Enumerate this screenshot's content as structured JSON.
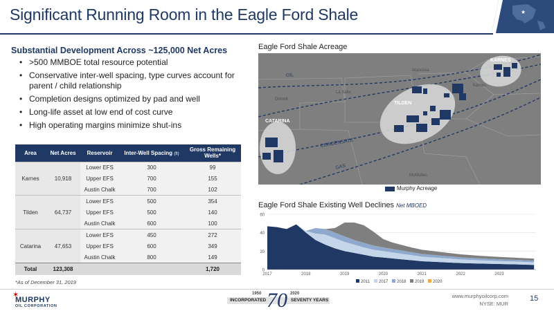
{
  "slide": {
    "title": "Significant Running Room in the Eagle Ford Shale",
    "page_number": "15"
  },
  "left": {
    "subhead": "Substantial Development Across ~125,000 Net Acres",
    "bullets": [
      ">500 MMBOE total resource potential",
      "Conservative inter-well spacing, type curves account for parent / child relationship",
      "Completion designs optimized by pad and well",
      "Long-life asset at low end of cost curve",
      "High operating margins minimize shut-ins"
    ]
  },
  "table": {
    "headers": {
      "area": "Area",
      "net_acres": "Net Acres",
      "reservoir": "Reservoir",
      "spacing": "Inter-Well Spacing",
      "spacing_unit": "(ft)",
      "wells": "Gross Remaining Wells*"
    },
    "groups": [
      {
        "area": "Karnes",
        "net_acres": "10,918",
        "rows": [
          {
            "reservoir": "Lower EFS",
            "spacing": "300",
            "wells": "99"
          },
          {
            "reservoir": "Upper EFS",
            "spacing": "700",
            "wells": "155"
          },
          {
            "reservoir": "Austin Chalk",
            "spacing": "700",
            "wells": "102"
          }
        ]
      },
      {
        "area": "Tilden",
        "net_acres": "64,737",
        "rows": [
          {
            "reservoir": "Lower EFS",
            "spacing": "500",
            "wells": "354"
          },
          {
            "reservoir": "Upper EFS",
            "spacing": "500",
            "wells": "140"
          },
          {
            "reservoir": "Austin Chalk",
            "spacing": "600",
            "wells": "100"
          }
        ]
      },
      {
        "area": "Catarina",
        "net_acres": "47,653",
        "rows": [
          {
            "reservoir": "Lower EFS",
            "spacing": "450",
            "wells": "272"
          },
          {
            "reservoir": "Upper EFS",
            "spacing": "600",
            "wells": "349"
          },
          {
            "reservoir": "Austin Chalk",
            "spacing": "800",
            "wells": "149"
          }
        ]
      }
    ],
    "total": {
      "label": "Total",
      "net_acres": "123,308",
      "wells": "1,720"
    },
    "footnote": "*As of December 31, 2019"
  },
  "map": {
    "title": "Eagle Ford Shale Acreage",
    "areas": {
      "karnes": "KARNES",
      "tilden": "TILDEN",
      "catarina": "CATARINA"
    },
    "windows": {
      "oil": "OIL",
      "condensate": "CONDENSATE",
      "gas": "GAS"
    },
    "counties": {
      "atascosa": "Atascosa",
      "karnes": "Karnes",
      "dimmit": "Dimmit",
      "la_salle": "La Salle",
      "mcmullen": "McMullen"
    },
    "legend": "Murphy Acreage",
    "colors": {
      "background": "#7f7f7f",
      "acreage": "#1f3864",
      "oval": "#d9d9d9"
    }
  },
  "chart": {
    "title": "Eagle Ford Shale Existing Well Declines",
    "subtitle": "Net MBOED"
  },
  "chart_data": {
    "type": "area",
    "title": "Eagle Ford Shale Existing Well Declines",
    "ylabel": "Net MBOED",
    "ylim": [
      0,
      60
    ],
    "yticks": [
      "0",
      "20",
      "40",
      "60"
    ],
    "xticks": [
      "2017",
      "2018",
      "2019",
      "2020",
      "2021",
      "2022",
      "2023"
    ],
    "x": [
      2017.0,
      2017.25,
      2017.5,
      2017.75,
      2018.0,
      2018.25,
      2018.5,
      2018.75,
      2019.0,
      2019.25,
      2019.5,
      2019.75,
      2020.0,
      2020.25,
      2020.5,
      2020.75,
      2021.0,
      2021.5,
      2022.0,
      2022.5,
      2023.0,
      2023.5,
      2023.9
    ],
    "series": [
      {
        "name": "2011",
        "color": "#1f3864",
        "values": [
          47,
          46,
          44,
          49,
          40,
          32,
          27,
          23,
          20,
          18,
          16,
          14,
          13,
          12,
          11,
          10,
          9,
          8,
          7,
          6.5,
          6,
          5.5,
          5
        ]
      },
      {
        "name": "2017",
        "color": "#c5d6ea",
        "values": [
          0,
          0,
          0,
          0,
          2,
          7,
          11,
          11,
          10,
          9,
          8,
          7.5,
          7,
          6.5,
          6,
          5.5,
          5,
          4.5,
          4,
          3.5,
          3.2,
          3,
          2.8
        ]
      },
      {
        "name": "2018",
        "color": "#8ea9cd",
        "values": [
          0,
          0,
          0,
          0,
          0,
          6,
          6,
          6,
          6,
          5,
          5,
          4.5,
          4,
          3.7,
          3.4,
          3.2,
          3,
          2.6,
          2.3,
          2.1,
          2,
          1.9,
          1.8
        ]
      },
      {
        "name": "2019",
        "color": "#7f7f7f",
        "values": [
          0,
          0,
          0,
          0,
          0,
          0,
          0,
          5,
          15,
          19,
          19,
          15,
          9,
          7,
          6,
          5,
          4.5,
          3.8,
          3.2,
          2.8,
          2.5,
          2.3,
          2.2
        ]
      },
      {
        "name": "2020",
        "color": "#f4a64a",
        "values": [
          0,
          0,
          0,
          0,
          0,
          0,
          0,
          0,
          0,
          0,
          0,
          0,
          0,
          0,
          0,
          0,
          0,
          0,
          0,
          0,
          0,
          0,
          0
        ]
      }
    ]
  }
}
